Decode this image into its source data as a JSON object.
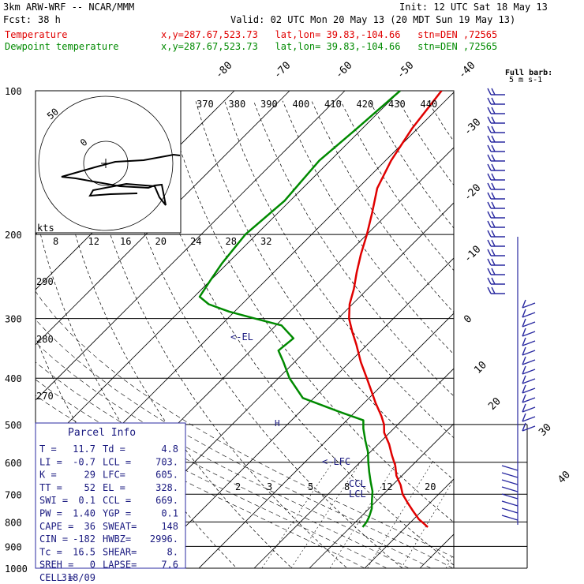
{
  "header": {
    "model": "3km ARW-WRF -- NCAR/MMM",
    "init": "Init: 12 UTC Sat 18 May 13",
    "fcst_label": "Fcst:",
    "fcst_value": "38 h",
    "valid": "Valid: 02 UTC Mon 20 May 13 (20 MDT Sun 19 May 13)",
    "temp_label": "Temperature",
    "dew_label": "Dewpoint temperature",
    "loc_text": "x,y=287.67,523.73   lat,lon= 39.83,-104.66   stn=DEN ,72565"
  },
  "colors": {
    "temperature": "#e00000",
    "dewpoint": "#008a00",
    "parcel_box": "#2828a0",
    "wind": "#2828a0"
  },
  "chart_data": {
    "type": "line",
    "pressure_levels": [
      100,
      200,
      300,
      400,
      500,
      600,
      700,
      800,
      900,
      1000
    ],
    "isotherm_labels": [
      "-80",
      "-70",
      "-60",
      "-50",
      "-40",
      "-30",
      "-20",
      "-10",
      "0",
      "10",
      "20",
      "30",
      "40"
    ],
    "theta_labels": [
      "370",
      "380",
      "390",
      "400",
      "410",
      "420",
      "430",
      "440"
    ],
    "theta_left_labels": [
      "290",
      "280",
      "270"
    ],
    "mixing_ratio_labels": [
      "2",
      "3",
      "5",
      "8",
      "12",
      "20"
    ],
    "hodo_speed_labels": [
      "8",
      "12",
      "16",
      "20",
      "24",
      "28",
      "32"
    ],
    "hodo_kts_label": "kts",
    "hodo_ring_labels": [
      "50",
      "0"
    ],
    "barb_legend": "Full barb:\n5 m s-1",
    "temperature": {
      "p": [
        820,
        810,
        790,
        760,
        730,
        700,
        670,
        640,
        610,
        580,
        550,
        520,
        500,
        480,
        450,
        420,
        400,
        370,
        340,
        320,
        300,
        280,
        260,
        240,
        220,
        200,
        180,
        160,
        140,
        120,
        100
      ],
      "t": [
        14.0,
        13.0,
        11.0,
        8.5,
        6.0,
        3.5,
        1.5,
        -1.0,
        -3.0,
        -5.5,
        -8.0,
        -11.0,
        -12.5,
        -14.5,
        -18.0,
        -21.5,
        -24.0,
        -28.0,
        -32.0,
        -35.0,
        -38.0,
        -40.5,
        -42.5,
        -45.0,
        -47.5,
        -50.0,
        -53.0,
        -56.5,
        -59.0,
        -61.0,
        -62.5
      ]
    },
    "dewpoint": {
      "p": [
        820,
        800,
        780,
        750,
        720,
        690,
        660,
        630,
        600,
        570,
        540,
        510,
        490,
        470,
        440,
        400,
        370,
        350,
        330,
        310,
        300,
        290,
        280,
        270,
        250,
        230,
        200,
        170,
        140,
        120,
        100
      ],
      "td": [
        2.2,
        2.0,
        1.5,
        0.5,
        -1.0,
        -2.5,
        -4.5,
        -6.5,
        -8.5,
        -10.5,
        -13.0,
        -15.5,
        -17.0,
        -23.0,
        -32.0,
        -38.0,
        -42.0,
        -45.0,
        -44.5,
        -49.0,
        -55.0,
        -61.0,
        -66.0,
        -69.0,
        -70.0,
        -71.0,
        -72.0,
        -71.0,
        -72.0,
        -71.0,
        -70.0
      ]
    },
    "annotations": [
      "<-EL",
      "<-LFC",
      "CCL",
      "LCL"
    ],
    "parcel_info": {
      "title": "Parcel Info",
      "rows": [
        [
          "T   =",
          "11.7",
          "Td =",
          "4.8"
        ],
        [
          "LI  =",
          "-0.7",
          "LCL =",
          "703."
        ],
        [
          "K   =",
          "29",
          "LFC=",
          "605."
        ],
        [
          "TT  =",
          "52",
          "EL  =",
          "328."
        ],
        [
          "SWI =",
          "0.1",
          "CCL =",
          "669."
        ],
        [
          "PW  =",
          "1.40",
          "YGP =",
          "0.1"
        ],
        [
          "CAPE =",
          "36",
          "SWEAT=",
          "148"
        ],
        [
          "CIN  =",
          "-182",
          "HWBZ=",
          "2996."
        ],
        [
          "Tc  =",
          "16.5",
          "SHEAR=",
          "8."
        ],
        [
          "SREH =",
          "0",
          "LAPSE=",
          "7.6"
        ],
        [
          "CELL =",
          "318/09",
          "",
          ""
        ]
      ]
    }
  }
}
